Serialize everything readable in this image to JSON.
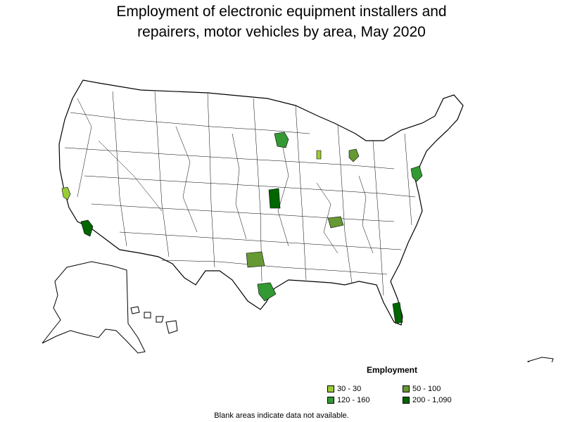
{
  "title": {
    "line1": "Employment of electronic equipment installers and",
    "line2": "repairers, motor vehicles by area, May 2020"
  },
  "legend": {
    "title": "Employment",
    "items": [
      {
        "label": "30 - 30",
        "color": "#99cc33"
      },
      {
        "label": "50 - 100",
        "color": "#669933"
      },
      {
        "label": "120 - 160",
        "color": "#339933"
      },
      {
        "label": "200 - 1,090",
        "color": "#006600"
      }
    ]
  },
  "footnote": "Blank areas indicate data not available."
}
